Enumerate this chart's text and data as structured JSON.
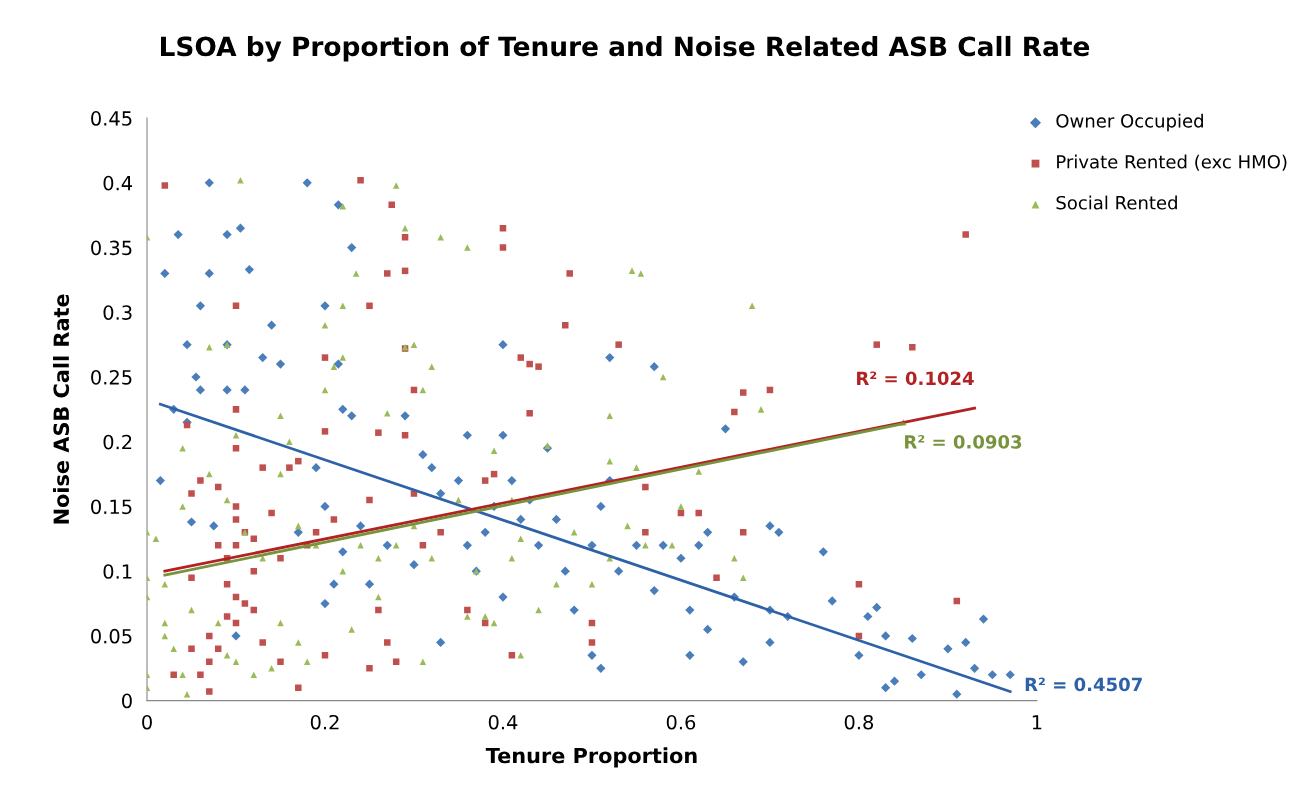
{
  "chart_data": {
    "type": "scatter",
    "title": "LSOA by Proportion of Tenure and Noise Related ASB Call Rate",
    "xlabel": "Tenure Proportion",
    "ylabel": "Noise ASB Call Rate",
    "xlim": [
      0,
      1
    ],
    "ylim": [
      0,
      0.45
    ],
    "xticks": [
      0,
      0.2,
      0.4,
      0.6,
      0.8,
      1
    ],
    "yticks": [
      0,
      0.05,
      0.1,
      0.15,
      0.2,
      0.25,
      0.3,
      0.35,
      0.4,
      0.45
    ],
    "grid": false,
    "legend": "top right",
    "series": [
      {
        "name": "Owner Occupied",
        "type": "scatter",
        "marker": "diamond",
        "color": "#4a7ebb",
        "x": [
          0.07,
          0.18,
          0.105,
          0.035,
          0.09,
          0.215,
          0.23,
          0.02,
          0.07,
          0.115,
          0.06,
          0.2,
          0.14,
          0.045,
          0.09,
          0.13,
          0.15,
          0.215,
          0.4,
          0.52,
          0.57,
          0.055,
          0.06,
          0.09,
          0.11,
          0.03,
          0.045,
          0.22,
          0.23,
          0.29,
          0.36,
          0.4,
          0.65,
          0.015,
          0.05,
          0.075,
          0.17,
          0.19,
          0.2,
          0.22,
          0.24,
          0.27,
          0.3,
          0.31,
          0.32,
          0.33,
          0.35,
          0.36,
          0.37,
          0.38,
          0.39,
          0.4,
          0.41,
          0.42,
          0.43,
          0.44,
          0.45,
          0.46,
          0.47,
          0.48,
          0.5,
          0.5,
          0.51,
          0.51,
          0.52,
          0.53,
          0.55,
          0.57,
          0.58,
          0.6,
          0.62,
          0.63,
          0.61,
          0.61,
          0.63,
          0.66,
          0.67,
          0.7,
          0.71,
          0.7,
          0.72,
          0.7,
          0.76,
          0.77,
          0.8,
          0.81,
          0.82,
          0.83,
          0.84,
          0.86,
          0.87,
          0.9,
          0.91,
          0.92,
          0.93,
          0.94,
          0.95,
          0.97,
          0.83,
          0.21,
          0.25,
          0.33,
          0.2,
          0.1
        ],
        "values": [
          0.4,
          0.4,
          0.365,
          0.36,
          0.36,
          0.383,
          0.35,
          0.33,
          0.33,
          0.333,
          0.305,
          0.305,
          0.29,
          0.275,
          0.275,
          0.265,
          0.26,
          0.26,
          0.275,
          0.265,
          0.258,
          0.25,
          0.24,
          0.24,
          0.24,
          0.225,
          0.215,
          0.225,
          0.22,
          0.22,
          0.205,
          0.205,
          0.21,
          0.17,
          0.138,
          0.135,
          0.13,
          0.18,
          0.15,
          0.115,
          0.135,
          0.12,
          0.105,
          0.19,
          0.18,
          0.16,
          0.17,
          0.12,
          0.1,
          0.13,
          0.15,
          0.08,
          0.17,
          0.14,
          0.155,
          0.12,
          0.195,
          0.14,
          0.1,
          0.07,
          0.12,
          0.035,
          0.025,
          0.15,
          0.17,
          0.1,
          0.12,
          0.085,
          0.12,
          0.11,
          0.12,
          0.13,
          0.07,
          0.035,
          0.055,
          0.08,
          0.03,
          0.135,
          0.13,
          0.07,
          0.065,
          0.045,
          0.115,
          0.077,
          0.035,
          0.065,
          0.072,
          0.05,
          0.015,
          0.048,
          0.02,
          0.04,
          0.005,
          0.045,
          0.025,
          0.063,
          0.02,
          0.02,
          0.01,
          0.09,
          0.09,
          0.045,
          0.075,
          0.05
        ]
      },
      {
        "name": "Private Rented (exc HMO)",
        "type": "scatter",
        "marker": "square",
        "color": "#c0504d",
        "x": [
          0.02,
          0.24,
          0.275,
          0.4,
          0.4,
          0.29,
          0.29,
          0.27,
          0.1,
          0.25,
          0.475,
          0.47,
          0.53,
          0.82,
          0.86,
          0.92,
          0.2,
          0.29,
          0.42,
          0.43,
          0.44,
          0.3,
          0.7,
          0.67,
          0.66,
          0.43,
          0.1,
          0.045,
          0.2,
          0.26,
          0.29,
          0.1,
          0.38,
          0.39,
          0.16,
          0.17,
          0.13,
          0.06,
          0.08,
          0.05,
          0.1,
          0.1,
          0.11,
          0.08,
          0.09,
          0.1,
          0.12,
          0.14,
          0.19,
          0.21,
          0.25,
          0.3,
          0.33,
          0.36,
          0.38,
          0.31,
          0.15,
          0.12,
          0.09,
          0.1,
          0.11,
          0.12,
          0.09,
          0.1,
          0.07,
          0.08,
          0.07,
          0.06,
          0.07,
          0.03,
          0.05,
          0.13,
          0.15,
          0.17,
          0.2,
          0.25,
          0.27,
          0.28,
          0.26,
          0.41,
          0.5,
          0.5,
          0.6,
          0.62,
          0.64,
          0.67,
          0.56,
          0.56,
          0.8,
          0.8,
          0.91,
          0.18,
          0.05
        ],
        "values": [
          0.398,
          0.402,
          0.383,
          0.365,
          0.35,
          0.358,
          0.332,
          0.33,
          0.305,
          0.305,
          0.33,
          0.29,
          0.275,
          0.275,
          0.273,
          0.36,
          0.265,
          0.272,
          0.265,
          0.26,
          0.258,
          0.24,
          0.24,
          0.238,
          0.223,
          0.222,
          0.225,
          0.213,
          0.208,
          0.207,
          0.205,
          0.195,
          0.17,
          0.175,
          0.18,
          0.185,
          0.18,
          0.17,
          0.165,
          0.16,
          0.15,
          0.14,
          0.13,
          0.12,
          0.11,
          0.12,
          0.125,
          0.145,
          0.13,
          0.14,
          0.155,
          0.16,
          0.13,
          0.07,
          0.06,
          0.12,
          0.11,
          0.1,
          0.09,
          0.08,
          0.075,
          0.07,
          0.065,
          0.06,
          0.05,
          0.04,
          0.03,
          0.02,
          0.007,
          0.02,
          0.04,
          0.045,
          0.03,
          0.01,
          0.035,
          0.025,
          0.045,
          0.03,
          0.07,
          0.035,
          0.045,
          0.06,
          0.145,
          0.145,
          0.095,
          0.13,
          0.165,
          0.13,
          0.09,
          0.05,
          0.077,
          0.12,
          0.095
        ]
      },
      {
        "name": "Social Rented",
        "type": "scatter",
        "marker": "triangle",
        "color": "#9bbb59",
        "x": [
          0.105,
          0.28,
          0.22,
          0.29,
          0.33,
          0.36,
          0.0,
          0.235,
          0.545,
          0.555,
          0.68,
          0.22,
          0.2,
          0.09,
          0.07,
          0.29,
          0.3,
          0.21,
          0.22,
          0.32,
          0.31,
          0.2,
          0.58,
          0.69,
          0.85,
          0.1,
          0.15,
          0.27,
          0.45,
          0.52,
          0.39,
          0.52,
          0.55,
          0.62,
          0.16,
          0.04,
          0.0,
          0.01,
          0.02,
          0.0,
          0.0,
          0.04,
          0.07,
          0.09,
          0.11,
          0.13,
          0.15,
          0.17,
          0.19,
          0.22,
          0.24,
          0.26,
          0.28,
          0.3,
          0.32,
          0.35,
          0.37,
          0.38,
          0.39,
          0.41,
          0.42,
          0.42,
          0.44,
          0.46,
          0.48,
          0.5,
          0.52,
          0.54,
          0.56,
          0.59,
          0.6,
          0.66,
          0.67,
          0.02,
          0.02,
          0.03,
          0.04,
          0.045,
          0.0,
          0.0,
          0.05,
          0.08,
          0.09,
          0.1,
          0.12,
          0.14,
          0.17,
          0.18,
          0.15,
          0.23,
          0.26,
          0.31,
          0.36,
          0.41
        ],
        "values": [
          0.402,
          0.398,
          0.382,
          0.365,
          0.358,
          0.35,
          0.358,
          0.33,
          0.332,
          0.33,
          0.305,
          0.305,
          0.29,
          0.275,
          0.273,
          0.273,
          0.275,
          0.258,
          0.265,
          0.258,
          0.24,
          0.24,
          0.25,
          0.225,
          0.215,
          0.205,
          0.22,
          0.222,
          0.197,
          0.22,
          0.193,
          0.185,
          0.18,
          0.177,
          0.2,
          0.195,
          0.13,
          0.125,
          0.09,
          0.095,
          0.08,
          0.15,
          0.175,
          0.155,
          0.13,
          0.11,
          0.175,
          0.135,
          0.12,
          0.1,
          0.12,
          0.11,
          0.12,
          0.135,
          0.11,
          0.155,
          0.1,
          0.065,
          0.06,
          0.11,
          0.125,
          0.035,
          0.07,
          0.09,
          0.13,
          0.09,
          0.11,
          0.135,
          0.12,
          0.12,
          0.15,
          0.11,
          0.095,
          0.06,
          0.05,
          0.04,
          0.02,
          0.005,
          0.02,
          0.01,
          0.07,
          0.06,
          0.035,
          0.03,
          0.02,
          0.025,
          0.045,
          0.03,
          0.06,
          0.055,
          0.08,
          0.03,
          0.065,
          0.155
        ]
      },
      {
        "name": "R² = 0.4507",
        "type": "line",
        "color": "#2e62a8",
        "x": [
          0.015,
          0.97
        ],
        "values": [
          0.229,
          0.007
        ]
      },
      {
        "name": "R² = 0.1024",
        "type": "line",
        "color": "#b22222",
        "x": [
          0.02,
          0.93
        ],
        "values": [
          0.1,
          0.226
        ]
      },
      {
        "name": "R² = 0.0903",
        "type": "line",
        "color": "#77933c",
        "x": [
          0.02,
          0.85
        ],
        "values": [
          0.097,
          0.214
        ]
      }
    ]
  }
}
